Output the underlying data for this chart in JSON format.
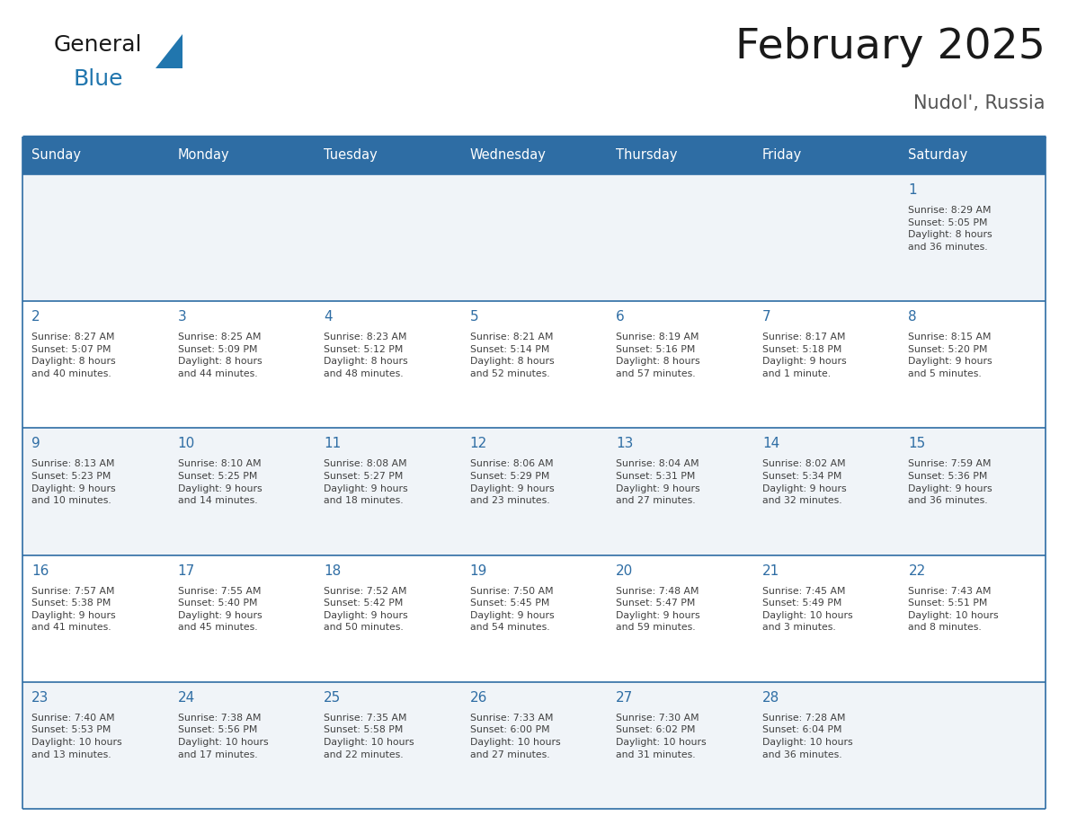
{
  "title": "February 2025",
  "subtitle": "Nudol', Russia",
  "header_bg": "#2E6DA4",
  "header_text_color": "#FFFFFF",
  "cell_bg_odd": "#F0F4F8",
  "cell_bg_even": "#FFFFFF",
  "grid_line_color": "#2E6DA4",
  "day_number_color": "#2E6DA4",
  "text_color": "#404040",
  "days_of_week": [
    "Sunday",
    "Monday",
    "Tuesday",
    "Wednesday",
    "Thursday",
    "Friday",
    "Saturday"
  ],
  "weeks": [
    [
      {
        "day": null,
        "info": null
      },
      {
        "day": null,
        "info": null
      },
      {
        "day": null,
        "info": null
      },
      {
        "day": null,
        "info": null
      },
      {
        "day": null,
        "info": null
      },
      {
        "day": null,
        "info": null
      },
      {
        "day": "1",
        "info": "Sunrise: 8:29 AM\nSunset: 5:05 PM\nDaylight: 8 hours\nand 36 minutes."
      }
    ],
    [
      {
        "day": "2",
        "info": "Sunrise: 8:27 AM\nSunset: 5:07 PM\nDaylight: 8 hours\nand 40 minutes."
      },
      {
        "day": "3",
        "info": "Sunrise: 8:25 AM\nSunset: 5:09 PM\nDaylight: 8 hours\nand 44 minutes."
      },
      {
        "day": "4",
        "info": "Sunrise: 8:23 AM\nSunset: 5:12 PM\nDaylight: 8 hours\nand 48 minutes."
      },
      {
        "day": "5",
        "info": "Sunrise: 8:21 AM\nSunset: 5:14 PM\nDaylight: 8 hours\nand 52 minutes."
      },
      {
        "day": "6",
        "info": "Sunrise: 8:19 AM\nSunset: 5:16 PM\nDaylight: 8 hours\nand 57 minutes."
      },
      {
        "day": "7",
        "info": "Sunrise: 8:17 AM\nSunset: 5:18 PM\nDaylight: 9 hours\nand 1 minute."
      },
      {
        "day": "8",
        "info": "Sunrise: 8:15 AM\nSunset: 5:20 PM\nDaylight: 9 hours\nand 5 minutes."
      }
    ],
    [
      {
        "day": "9",
        "info": "Sunrise: 8:13 AM\nSunset: 5:23 PM\nDaylight: 9 hours\nand 10 minutes."
      },
      {
        "day": "10",
        "info": "Sunrise: 8:10 AM\nSunset: 5:25 PM\nDaylight: 9 hours\nand 14 minutes."
      },
      {
        "day": "11",
        "info": "Sunrise: 8:08 AM\nSunset: 5:27 PM\nDaylight: 9 hours\nand 18 minutes."
      },
      {
        "day": "12",
        "info": "Sunrise: 8:06 AM\nSunset: 5:29 PM\nDaylight: 9 hours\nand 23 minutes."
      },
      {
        "day": "13",
        "info": "Sunrise: 8:04 AM\nSunset: 5:31 PM\nDaylight: 9 hours\nand 27 minutes."
      },
      {
        "day": "14",
        "info": "Sunrise: 8:02 AM\nSunset: 5:34 PM\nDaylight: 9 hours\nand 32 minutes."
      },
      {
        "day": "15",
        "info": "Sunrise: 7:59 AM\nSunset: 5:36 PM\nDaylight: 9 hours\nand 36 minutes."
      }
    ],
    [
      {
        "day": "16",
        "info": "Sunrise: 7:57 AM\nSunset: 5:38 PM\nDaylight: 9 hours\nand 41 minutes."
      },
      {
        "day": "17",
        "info": "Sunrise: 7:55 AM\nSunset: 5:40 PM\nDaylight: 9 hours\nand 45 minutes."
      },
      {
        "day": "18",
        "info": "Sunrise: 7:52 AM\nSunset: 5:42 PM\nDaylight: 9 hours\nand 50 minutes."
      },
      {
        "day": "19",
        "info": "Sunrise: 7:50 AM\nSunset: 5:45 PM\nDaylight: 9 hours\nand 54 minutes."
      },
      {
        "day": "20",
        "info": "Sunrise: 7:48 AM\nSunset: 5:47 PM\nDaylight: 9 hours\nand 59 minutes."
      },
      {
        "day": "21",
        "info": "Sunrise: 7:45 AM\nSunset: 5:49 PM\nDaylight: 10 hours\nand 3 minutes."
      },
      {
        "day": "22",
        "info": "Sunrise: 7:43 AM\nSunset: 5:51 PM\nDaylight: 10 hours\nand 8 minutes."
      }
    ],
    [
      {
        "day": "23",
        "info": "Sunrise: 7:40 AM\nSunset: 5:53 PM\nDaylight: 10 hours\nand 13 minutes."
      },
      {
        "day": "24",
        "info": "Sunrise: 7:38 AM\nSunset: 5:56 PM\nDaylight: 10 hours\nand 17 minutes."
      },
      {
        "day": "25",
        "info": "Sunrise: 7:35 AM\nSunset: 5:58 PM\nDaylight: 10 hours\nand 22 minutes."
      },
      {
        "day": "26",
        "info": "Sunrise: 7:33 AM\nSunset: 6:00 PM\nDaylight: 10 hours\nand 27 minutes."
      },
      {
        "day": "27",
        "info": "Sunrise: 7:30 AM\nSunset: 6:02 PM\nDaylight: 10 hours\nand 31 minutes."
      },
      {
        "day": "28",
        "info": "Sunrise: 7:28 AM\nSunset: 6:04 PM\nDaylight: 10 hours\nand 36 minutes."
      },
      {
        "day": null,
        "info": null
      }
    ]
  ],
  "logo_general_color": "#1a1a1a",
  "logo_blue_color": "#2176AE",
  "logo_triangle_color": "#2176AE"
}
